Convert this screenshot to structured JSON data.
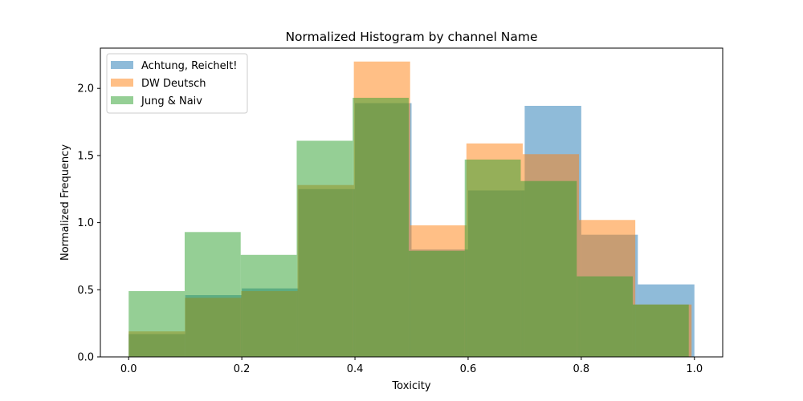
{
  "chart_data": {
    "type": "bar",
    "title": "Normalized Histogram by channel Name",
    "xlabel": "Toxicity",
    "ylabel": "Normalized Frequency",
    "xlim": [
      -0.05,
      1.05
    ],
    "ylim": [
      0,
      2.3
    ],
    "xticks": [
      "0.0",
      "0.2",
      "0.4",
      "0.6",
      "0.8",
      "1.0"
    ],
    "yticks": [
      "0.0",
      "0.5",
      "1.0",
      "1.5",
      "2.0"
    ],
    "legend_position": "top-left",
    "alpha": 0.5,
    "series": [
      {
        "name": "Achtung, Reichelt!",
        "color": "#1f77b4",
        "bin_edges": [
          0.0,
          0.1,
          0.2,
          0.3,
          0.4,
          0.5,
          0.6,
          0.7,
          0.8,
          0.9,
          1.0
        ],
        "values": [
          0.17,
          0.46,
          0.51,
          1.25,
          1.89,
          0.8,
          1.24,
          1.87,
          0.91,
          0.54
        ]
      },
      {
        "name": "DW Deutsch",
        "color": "#ff7f0e",
        "bin_edges": [
          0.0,
          0.0995,
          0.199,
          0.2985,
          0.398,
          0.4975,
          0.597,
          0.6965,
          0.796,
          0.8955,
          0.995
        ],
        "values": [
          0.19,
          0.44,
          0.49,
          1.28,
          2.2,
          0.98,
          1.59,
          1.51,
          1.02,
          0.39
        ]
      },
      {
        "name": "Jung & Naiv",
        "color": "#2ca02c",
        "bin_edges": [
          0.0,
          0.099,
          0.198,
          0.297,
          0.396,
          0.495,
          0.594,
          0.693,
          0.792,
          0.891,
          0.99
        ],
        "values": [
          0.49,
          0.93,
          0.76,
          1.61,
          1.93,
          0.79,
          1.47,
          1.31,
          0.6,
          0.39
        ]
      }
    ]
  }
}
